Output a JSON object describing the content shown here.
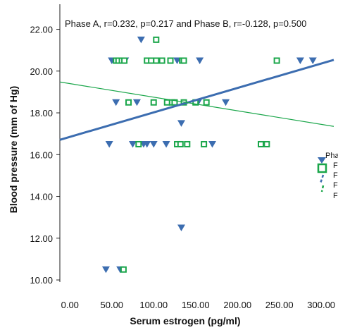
{
  "chart_data": {
    "type": "scatter",
    "title": "",
    "annotation": "Phase A, r=0.232, p=0.217 and Phase B, r=-0.128, p=0.500",
    "xlabel": "Serum estrogen (pg/ml)",
    "ylabel": "Blood pressure (mm of Hg)",
    "xlim": [
      -12,
      315
    ],
    "ylim": [
      9.9,
      23.2
    ],
    "x_ticks": [
      0,
      50,
      100,
      150,
      200,
      250,
      300
    ],
    "x_tick_labels": [
      "0.00",
      "50.00",
      "100.00",
      "150.00",
      "200.00",
      "250.00",
      "300.00"
    ],
    "y_ticks": [
      10,
      12,
      14,
      16,
      18,
      20,
      22
    ],
    "y_tick_labels": [
      "10.00",
      "12.00",
      "14.00",
      "16.00",
      "18.00",
      "20.00",
      "22.00"
    ],
    "legend": {
      "placement": "right (partially cropped)",
      "title": "Pha",
      "entries": [
        "F",
        "F",
        "F",
        "F"
      ]
    },
    "colors": {
      "phase_a": "#3c6db0",
      "phase_b": "#1aa64a"
    },
    "series": [
      {
        "marker": "triangle-down",
        "points": [
          [
            50,
            20.5
          ],
          [
            55,
            18.5
          ],
          [
            60,
            10.5
          ],
          [
            66,
            20.5
          ],
          [
            47,
            16.5
          ],
          [
            75,
            16.5
          ],
          [
            80,
            18.5
          ],
          [
            85,
            21.5
          ],
          [
            88,
            16.5
          ],
          [
            92,
            16.5
          ],
          [
            100,
            16.5
          ],
          [
            115,
            16.5
          ],
          [
            128,
            20.5
          ],
          [
            133,
            17.5
          ],
          [
            133,
            12.5
          ],
          [
            135,
            20.5
          ],
          [
            153,
            18.5
          ],
          [
            155,
            20.5
          ],
          [
            170,
            16.5
          ],
          [
            186,
            18.5
          ],
          [
            275,
            20.5
          ],
          [
            290,
            20.5
          ],
          [
            43,
            10.5
          ]
        ],
        "fit_line": {
          "slope": 0.0117,
          "intercept": 16.85
        }
      },
      {
        "marker": "square-open",
        "points": [
          [
            55,
            20.5
          ],
          [
            58,
            20.5
          ],
          [
            62,
            20.5
          ],
          [
            65,
            20.5
          ],
          [
            64,
            10.5
          ],
          [
            70,
            18.5
          ],
          [
            82,
            16.5
          ],
          [
            92,
            20.5
          ],
          [
            97,
            20.5
          ],
          [
            100,
            18.5
          ],
          [
            103,
            20.5
          ],
          [
            103,
            21.5
          ],
          [
            110,
            20.5
          ],
          [
            116,
            18.5
          ],
          [
            120,
            20.5
          ],
          [
            122,
            18.5
          ],
          [
            125,
            18.5
          ],
          [
            128,
            16.5
          ],
          [
            132,
            16.5
          ],
          [
            134,
            20.5
          ],
          [
            136,
            20.5
          ],
          [
            136,
            18.5
          ],
          [
            140,
            16.5
          ],
          [
            150,
            18.5
          ],
          [
            160,
            16.5
          ],
          [
            163,
            18.5
          ],
          [
            228,
            16.5
          ],
          [
            235,
            16.5
          ],
          [
            247,
            20.5
          ]
        ],
        "fit_line": {
          "slope": -0.0065,
          "intercept": 19.4
        }
      }
    ]
  }
}
